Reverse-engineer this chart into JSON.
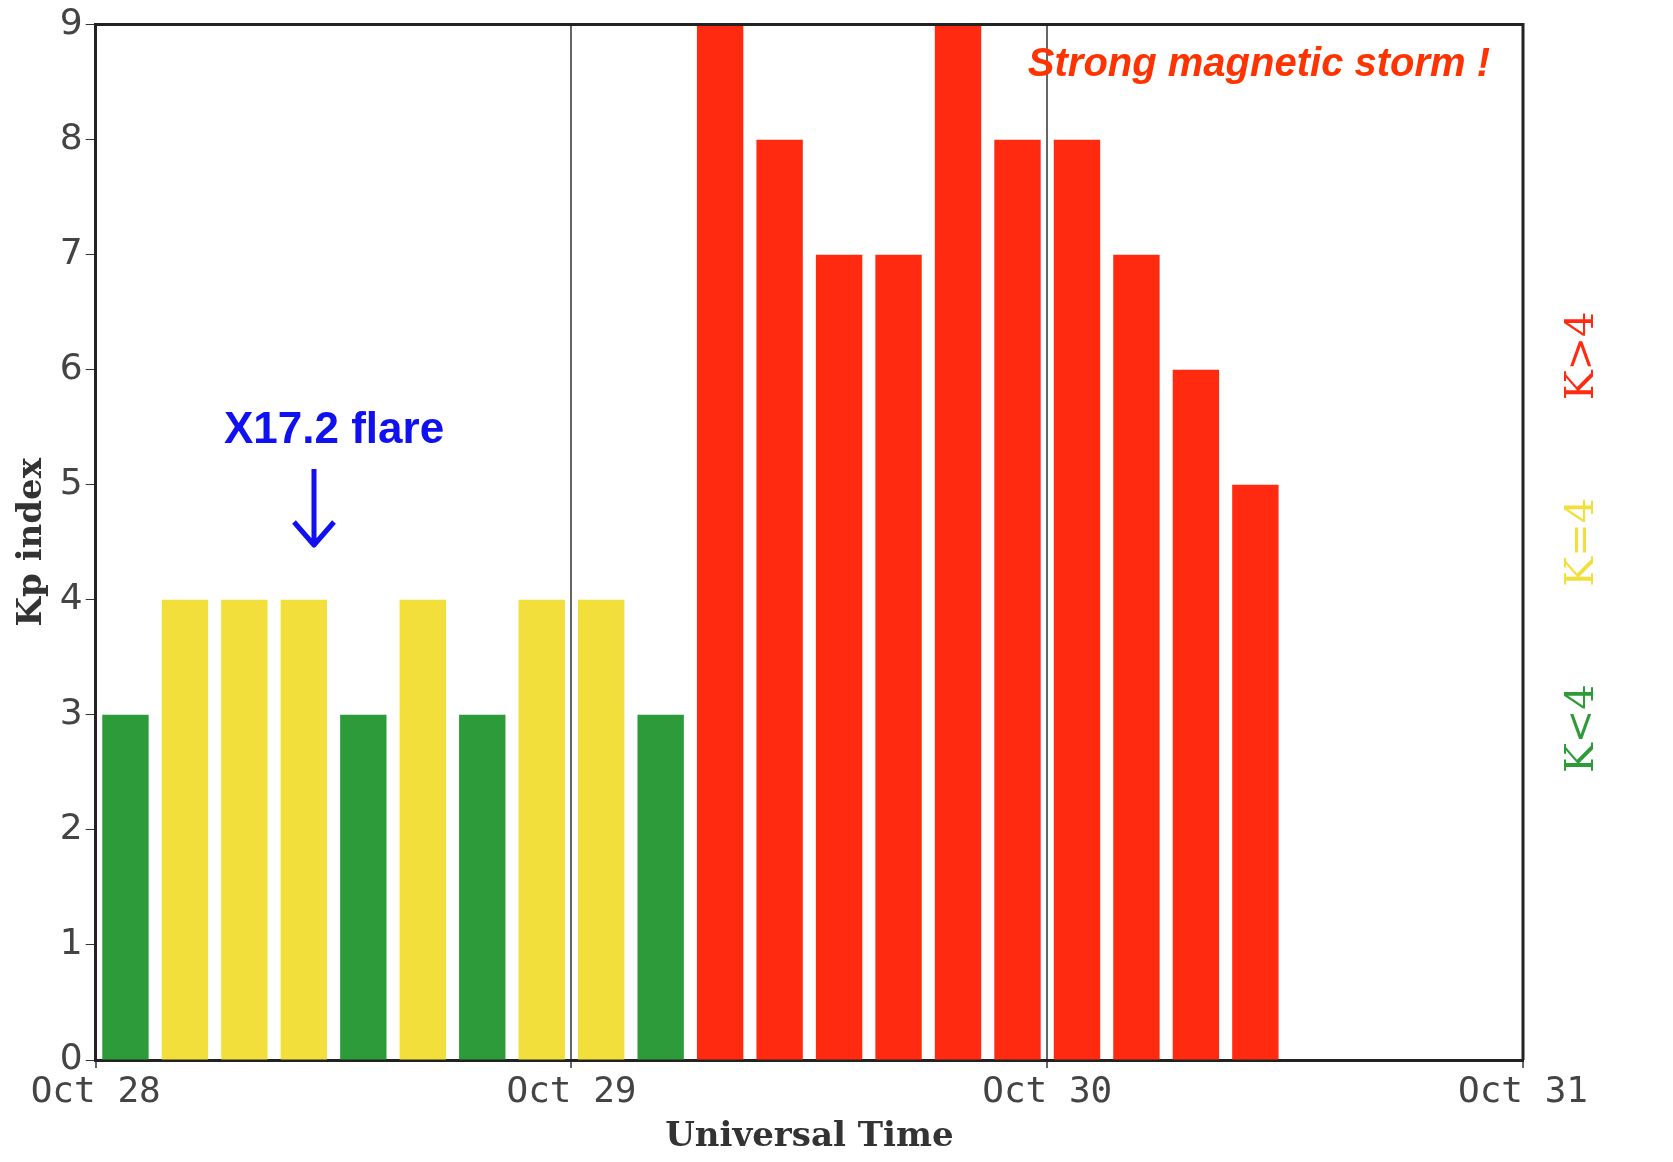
{
  "chart_data": {
    "type": "bar",
    "xlabel": "Universal Time",
    "ylabel": "Kp index",
    "x": [
      "--10-28T01:30",
      "--10-28T04:30",
      "--10-28T07:30",
      "--10-28T10:30",
      "--10-28T13:30",
      "--10-28T16:30",
      "--10-28T19:30",
      "--10-28T22:30",
      "--10-29T01:30",
      "--10-29T04:30",
      "--10-29T07:30",
      "--10-29T10:30",
      "--10-29T13:30",
      "--10-29T16:30",
      "--10-29T19:30",
      "--10-29T22:30",
      "--10-30T01:30",
      "--10-30T04:30",
      "--10-30T07:30",
      "--10-30T10:30"
    ],
    "series": [
      {
        "name": "K<4",
        "color": "#2e9b3a",
        "values": [
          3,
          null,
          null,
          null,
          3,
          null,
          3,
          null,
          null,
          3,
          null,
          null,
          null,
          null,
          null,
          null,
          null,
          null,
          null,
          null
        ]
      },
      {
        "name": "K=4",
        "color": "#f2df3c",
        "values": [
          null,
          4,
          4,
          4,
          null,
          4,
          null,
          4,
          4,
          null,
          null,
          null,
          null,
          null,
          null,
          null,
          null,
          null,
          null,
          null
        ]
      },
      {
        "name": "K>4",
        "color": "#ff2a10",
        "values": [
          null,
          null,
          null,
          null,
          null,
          null,
          null,
          null,
          null,
          null,
          9,
          8,
          7,
          7,
          9,
          8,
          8,
          7,
          6,
          5
        ]
      }
    ],
    "xlim": [
      "--10-28",
      "--10-31"
    ],
    "xticks": [
      {
        "value": "--10-28",
        "label": "Oct 28"
      },
      {
        "value": "--10-29",
        "label": "Oct 29"
      },
      {
        "value": "--10-30",
        "label": "Oct 30"
      },
      {
        "value": "--10-31",
        "label": "Oct 31"
      }
    ],
    "ylim": [
      0,
      9
    ],
    "yticks": [
      0,
      1,
      2,
      3,
      4,
      5,
      6,
      7,
      8,
      9
    ],
    "grid": "x",
    "legend": "right",
    "annotations": [
      "X17.2 flare",
      "Strong magnetic storm !"
    ]
  }
}
